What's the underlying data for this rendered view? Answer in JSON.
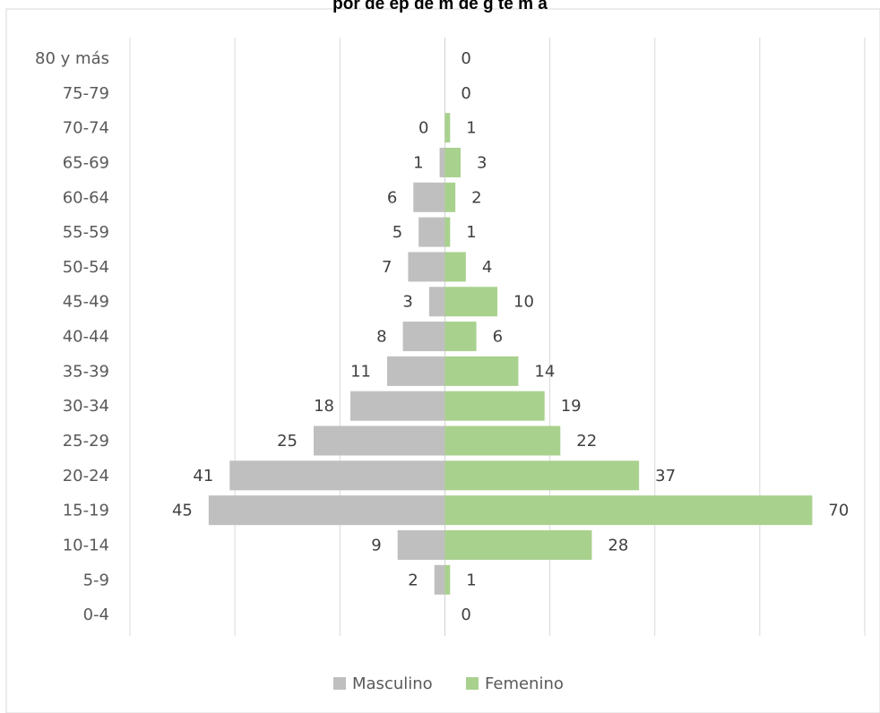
{
  "chart_data": {
    "type": "bar",
    "orientation": "horizontal",
    "title": "por de ep de m de g te m a",
    "categories": [
      "80 y más",
      "75-79",
      "70-74",
      "65-69",
      "60-64",
      "55-59",
      "50-54",
      "45-49",
      "40-44",
      "35-39",
      "30-34",
      "25-29",
      "20-24",
      "15-19",
      "10-14",
      "5-9",
      "0-4"
    ],
    "series": [
      {
        "name": "Masculino",
        "color": "#bfbfbf",
        "values": [
          null,
          null,
          0,
          1,
          6,
          5,
          7,
          3,
          8,
          11,
          18,
          25,
          41,
          45,
          9,
          2,
          null
        ],
        "labels": [
          "",
          "",
          "0",
          "1",
          "6",
          "5",
          "7",
          "3",
          "8",
          "11",
          "18",
          "25",
          "41",
          "45",
          "9",
          "2",
          ""
        ]
      },
      {
        "name": "Femenino",
        "color": "#a9d18e",
        "values": [
          0,
          0,
          1,
          3,
          2,
          1,
          4,
          10,
          6,
          14,
          19,
          22,
          37,
          70,
          28,
          1,
          0
        ],
        "labels": [
          "0",
          "0",
          "1",
          "3",
          "2",
          "1",
          "4",
          "10",
          "6",
          "14",
          "19",
          "22",
          "37",
          "70",
          "28",
          "1",
          "0"
        ]
      }
    ],
    "xlim": [
      -60,
      80
    ],
    "grid": true,
    "legend_position": "bottom"
  }
}
